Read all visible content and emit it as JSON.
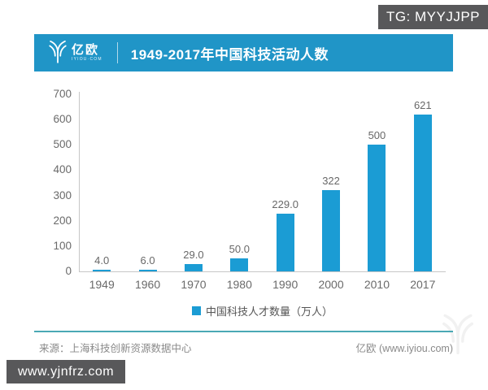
{
  "badges": {
    "top_right": "TG: MYYJJPP",
    "bottom_left": "www.yjnfrz.com"
  },
  "header": {
    "logo_name": "亿欧",
    "logo_subtitle": "IYIOU·COM",
    "title": "1949-2017年中国科技活动人数"
  },
  "chart_data": {
    "type": "bar",
    "title": "1949-2017年中国科技活动人数",
    "categories": [
      "1949",
      "1960",
      "1970",
      "1980",
      "1990",
      "2000",
      "2010",
      "2017"
    ],
    "values": [
      4.0,
      6.0,
      29.0,
      50.0,
      229.0,
      322,
      500,
      621
    ],
    "value_labels": [
      "4.0",
      "6.0",
      "29.0",
      "50.0",
      "229.0",
      "322",
      "500",
      "621"
    ],
    "series_name": "中国科技人才数量（万人）",
    "xlabel": "",
    "ylabel": "",
    "ylim": [
      0,
      700
    ],
    "yticks": [
      0,
      100,
      200,
      300,
      400,
      500,
      600,
      700
    ],
    "grid": false,
    "legend_position": "bottom",
    "bar_color": "#1b9cd4"
  },
  "legend": {
    "label": "中国科技人才数量（万人）"
  },
  "footer": {
    "source": "来源：上海科技创新资源数据中心",
    "credit": "亿欧 (www.iyiou.com)"
  },
  "colors": {
    "banner": "#2095c7",
    "bar": "#1b9cd4",
    "divider_line": "#4aa8b5",
    "badge_bg": "#58585a"
  }
}
